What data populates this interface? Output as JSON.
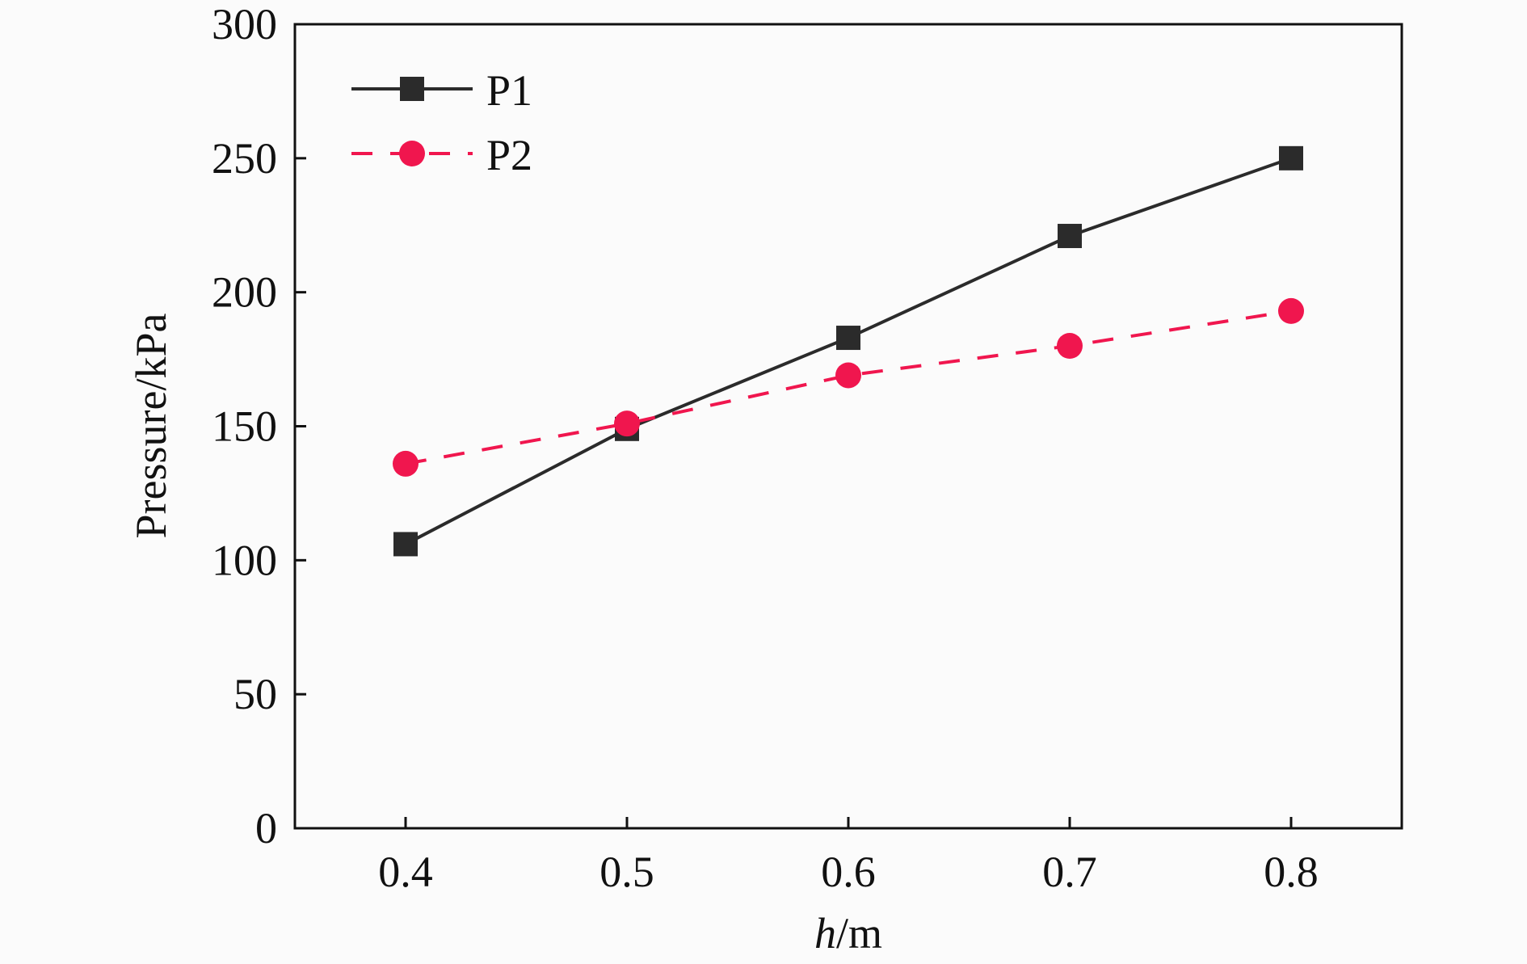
{
  "chart_data": {
    "type": "line",
    "title": "",
    "xlabel_italic": "h",
    "xlabel_unit": "/m",
    "ylabel": "Pressure/kPa",
    "xlim": [
      0.35,
      0.85
    ],
    "ylim": [
      0,
      300
    ],
    "x_ticks": [
      "0.4",
      "0.5",
      "0.6",
      "0.7",
      "0.8"
    ],
    "y_ticks": [
      "0",
      "50",
      "100",
      "150",
      "200",
      "250",
      "300"
    ],
    "x": [
      0.4,
      0.5,
      0.6,
      0.7,
      0.8
    ],
    "series": [
      {
        "name": "P1",
        "values": [
          106,
          149,
          183,
          221,
          250
        ],
        "color": "#2b2b2b",
        "marker": "square",
        "line": "solid"
      },
      {
        "name": "P2",
        "values": [
          136,
          151,
          169,
          180,
          193
        ],
        "color": "#f0164e",
        "marker": "circle",
        "line": "dashed"
      }
    ],
    "legend_position": "top-left",
    "grid": false
  }
}
